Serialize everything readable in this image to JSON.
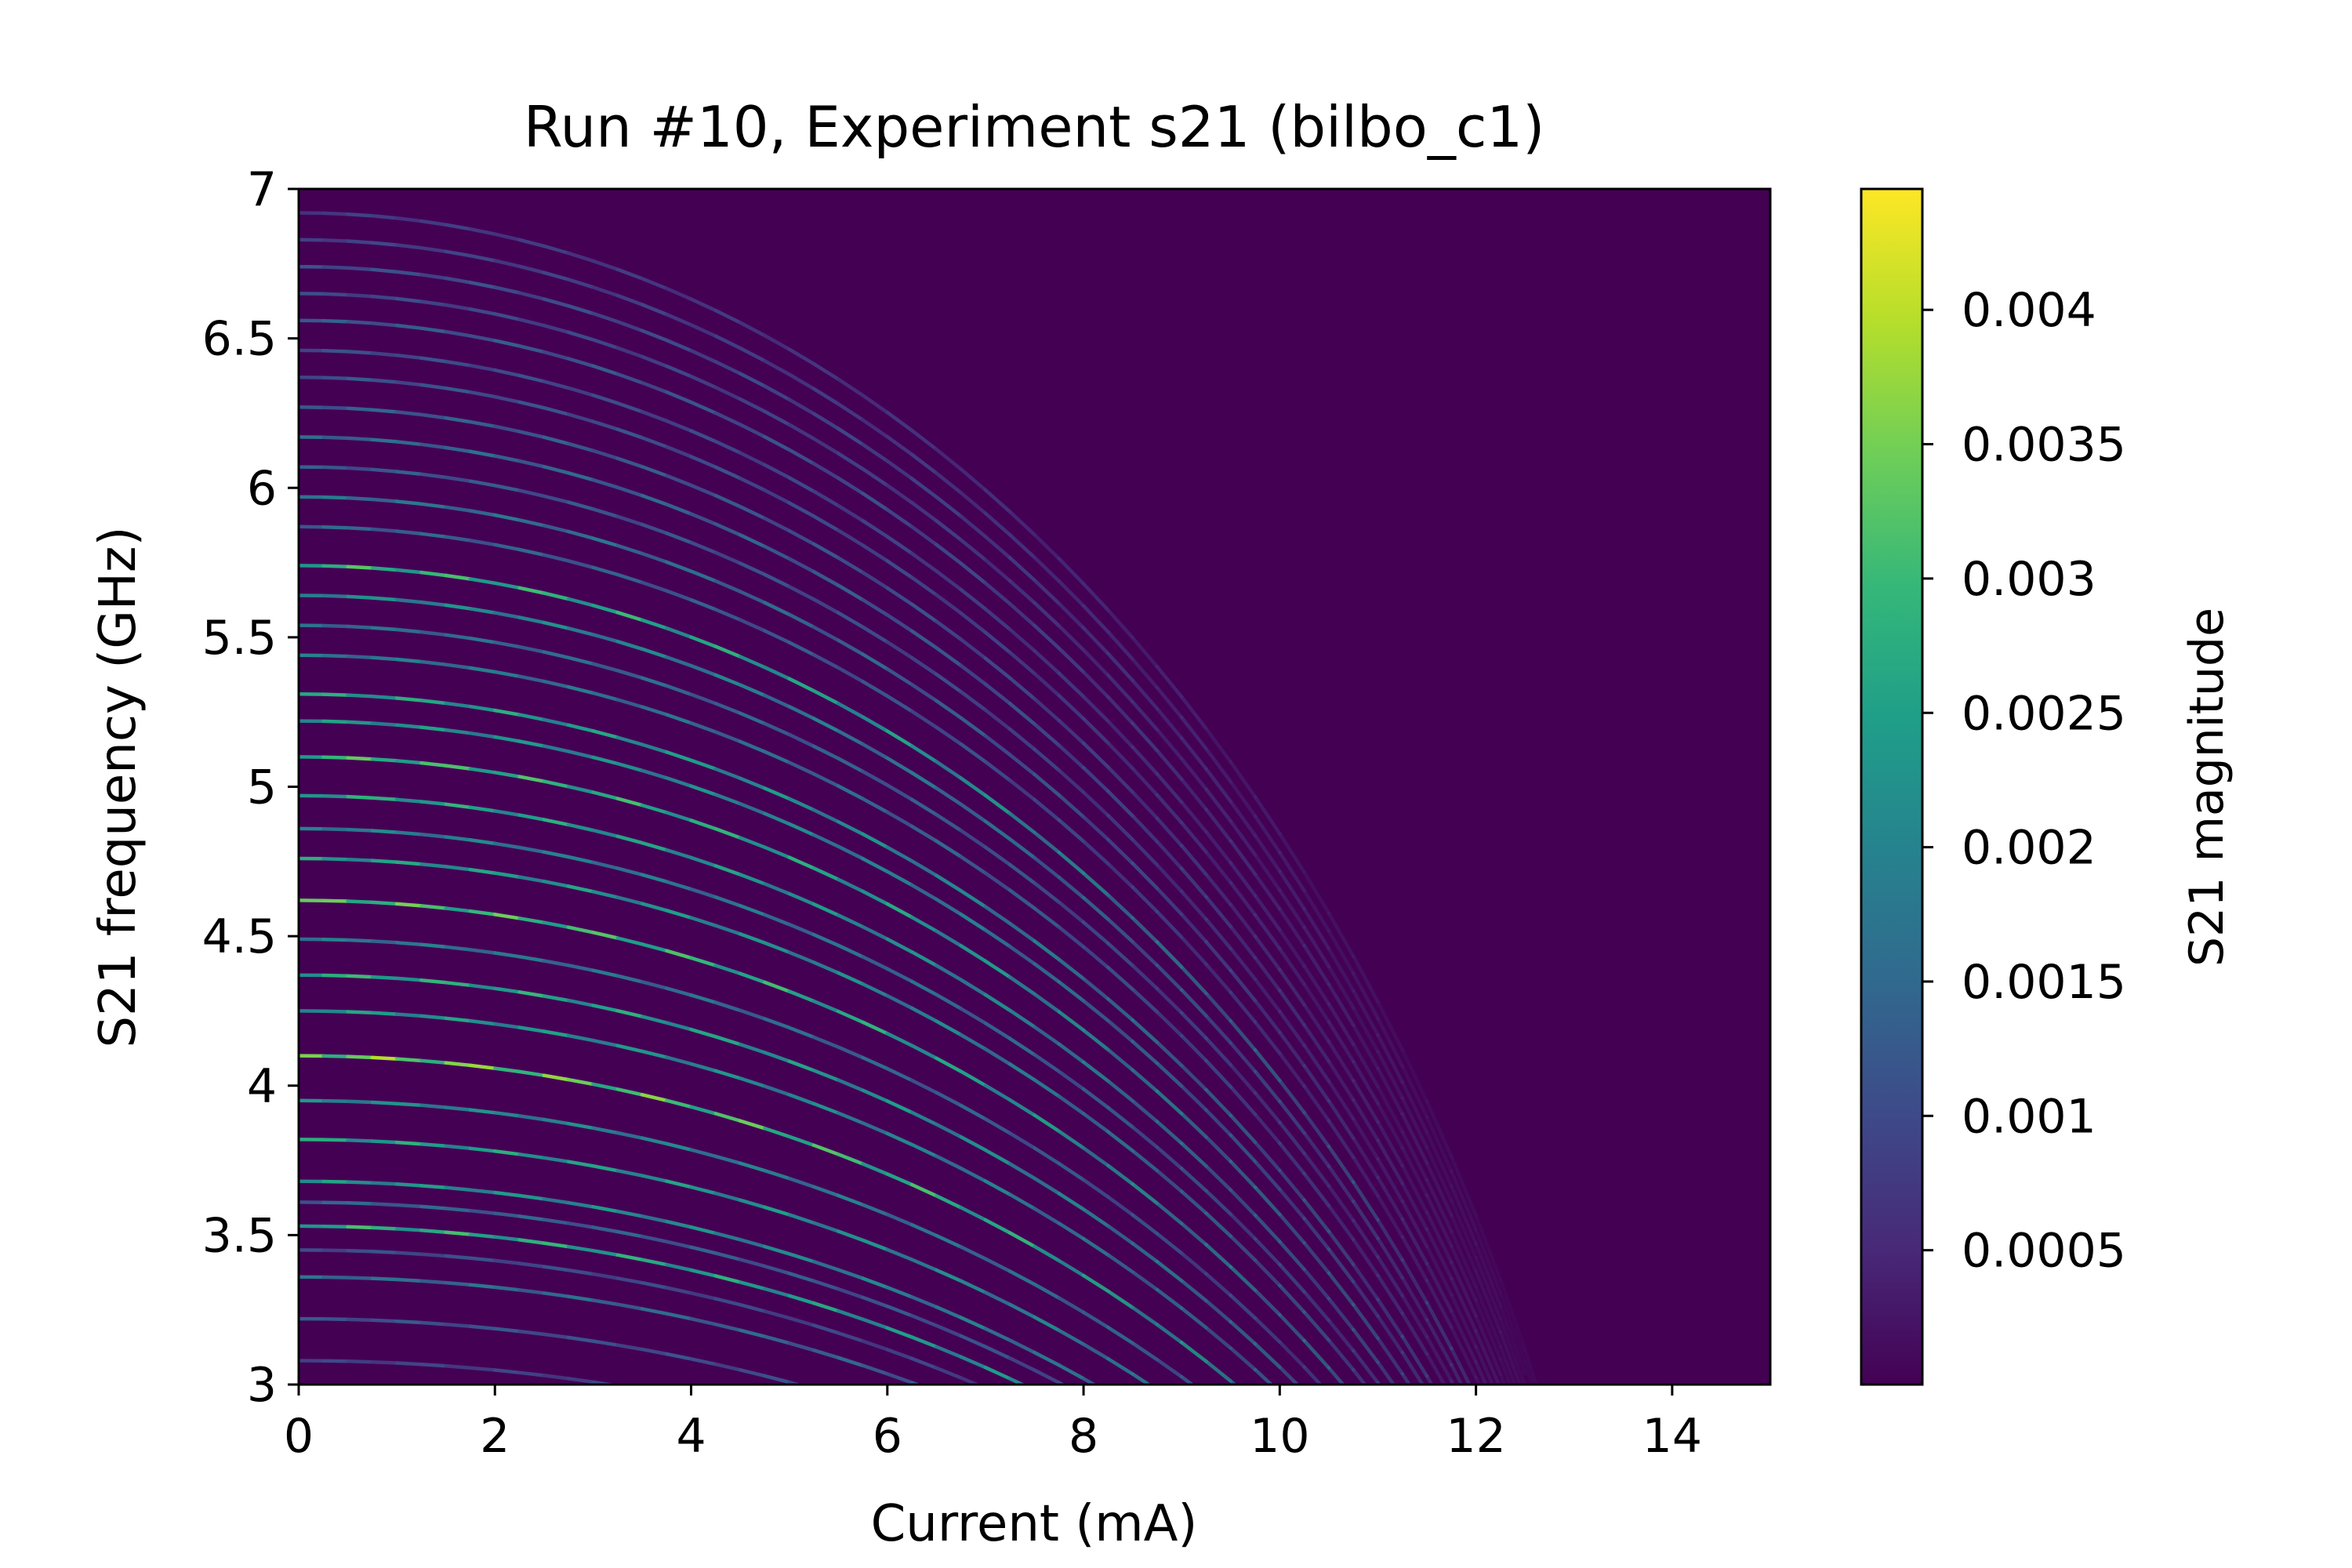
{
  "chart_data": {
    "type": "heatmap",
    "title": "Run #10, Experiment s21 (bilbo_c1)",
    "xlabel": "Current (mA)",
    "ylabel": "S21 frequency (GHz)",
    "xlim": [
      0,
      15
    ],
    "ylim": [
      3,
      7
    ],
    "x_ticks": [
      0,
      2,
      4,
      6,
      8,
      10,
      12,
      14
    ],
    "x_tick_labels": [
      "0",
      "2",
      "4",
      "6",
      "8",
      "10",
      "12",
      "14"
    ],
    "y_ticks": [
      3,
      3.5,
      4,
      4.5,
      5,
      5.5,
      6,
      6.5,
      7
    ],
    "y_tick_labels": [
      "3",
      "3.5",
      "4",
      "4.5",
      "5",
      "5.5",
      "6",
      "6.5",
      "7"
    ],
    "colormap": "viridis",
    "colorbar": {
      "label": "S21 magnitude",
      "min": 0,
      "max": 0.00445,
      "ticks": [
        0.0005,
        0.001,
        0.0015,
        0.002,
        0.0025,
        0.003,
        0.0035,
        0.004
      ],
      "tick_labels": [
        "0.0005",
        "0.001",
        "0.0015",
        "0.002",
        "0.0025",
        "0.003",
        "0.0035",
        "0.004"
      ]
    },
    "background_color": "#440154",
    "grid": false,
    "resonance_model": {
      "description": "Each resonance mode f(I) = f0 * sqrt(1 - (I / I_c)^2); peak magnitude decays with current",
      "I_c_mA": 14.0
    },
    "resonances": [
      {
        "f0": 3.08,
        "peak": 0.001
      },
      {
        "f0": 3.22,
        "peak": 0.0013
      },
      {
        "f0": 3.36,
        "peak": 0.0018
      },
      {
        "f0": 3.45,
        "peak": 0.0012
      },
      {
        "f0": 3.53,
        "peak": 0.0032
      },
      {
        "f0": 3.61,
        "peak": 0.0016
      },
      {
        "f0": 3.68,
        "peak": 0.0026
      },
      {
        "f0": 3.82,
        "peak": 0.0029
      },
      {
        "f0": 3.95,
        "peak": 0.0024
      },
      {
        "f0": 4.1,
        "peak": 0.004
      },
      {
        "f0": 4.25,
        "peak": 0.0027
      },
      {
        "f0": 4.37,
        "peak": 0.0031
      },
      {
        "f0": 4.49,
        "peak": 0.002
      },
      {
        "f0": 4.62,
        "peak": 0.0036
      },
      {
        "f0": 4.76,
        "peak": 0.0028
      },
      {
        "f0": 4.86,
        "peak": 0.0022
      },
      {
        "f0": 4.97,
        "peak": 0.003
      },
      {
        "f0": 5.1,
        "peak": 0.0034
      },
      {
        "f0": 5.22,
        "peak": 0.0026
      },
      {
        "f0": 5.31,
        "peak": 0.0029
      },
      {
        "f0": 5.44,
        "peak": 0.002
      },
      {
        "f0": 5.54,
        "peak": 0.0018
      },
      {
        "f0": 5.64,
        "peak": 0.0024
      },
      {
        "f0": 5.74,
        "peak": 0.0033
      },
      {
        "f0": 5.87,
        "peak": 0.0016
      },
      {
        "f0": 5.97,
        "peak": 0.0019
      },
      {
        "f0": 6.07,
        "peak": 0.0014
      },
      {
        "f0": 6.17,
        "peak": 0.0017
      },
      {
        "f0": 6.27,
        "peak": 0.0015
      },
      {
        "f0": 6.37,
        "peak": 0.0013
      },
      {
        "f0": 6.46,
        "peak": 0.0012
      },
      {
        "f0": 6.56,
        "peak": 0.0014
      },
      {
        "f0": 6.65,
        "peak": 0.0011
      },
      {
        "f0": 6.74,
        "peak": 0.0012
      },
      {
        "f0": 6.83,
        "peak": 0.001
      },
      {
        "f0": 6.92,
        "peak": 0.0009
      }
    ]
  }
}
